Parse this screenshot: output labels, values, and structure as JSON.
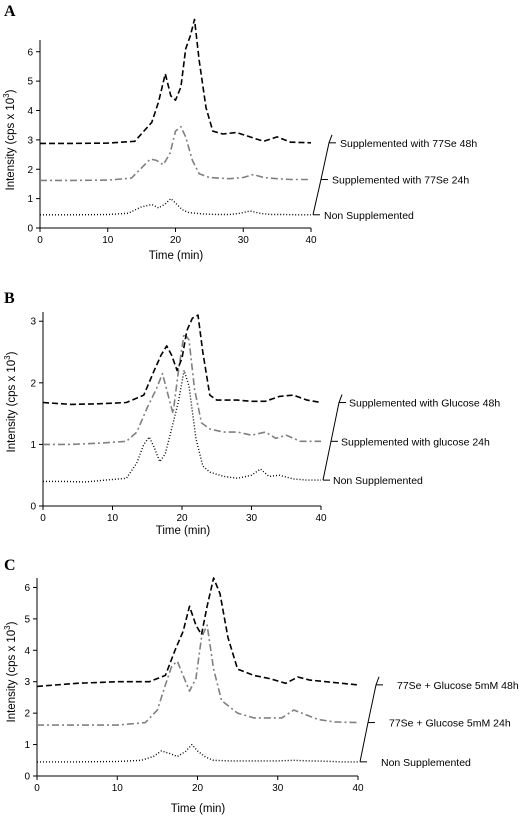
{
  "chart_data": [
    {
      "type": "line",
      "panel": "A",
      "xlabel": "Time (min)",
      "ylabel": "Intensity (cps x 10",
      "ylabel_sup": "3",
      "ylabel_close": ")",
      "xlim": [
        0,
        40
      ],
      "ylim": [
        0,
        6.4
      ],
      "x_ticks": [
        "0",
        "10",
        "20",
        "30",
        "40"
      ],
      "y_ticks": [
        "0",
        "1",
        "2",
        "3",
        "4",
        "5",
        "6"
      ],
      "grid": false,
      "series": [
        {
          "name": "Non Supplemented",
          "color": "#000000",
          "style": "dotted",
          "x": [
            0,
            5,
            10,
            13,
            15,
            16.5,
            17.5,
            18.5,
            19.3,
            20,
            21,
            22,
            24,
            26,
            28,
            29.5,
            31,
            32.5,
            34,
            36,
            38,
            40
          ],
          "y": [
            0.45,
            0.45,
            0.46,
            0.5,
            0.72,
            0.8,
            0.68,
            0.82,
            1.0,
            0.85,
            0.62,
            0.52,
            0.48,
            0.46,
            0.46,
            0.5,
            0.58,
            0.5,
            0.46,
            0.46,
            0.45,
            0.45
          ]
        },
        {
          "name": "Supplemented with 77Se 24h",
          "color": "#808080",
          "style": "dashdot",
          "x": [
            0,
            5,
            10,
            13.5,
            15,
            16.3,
            17.2,
            18.2,
            19.2,
            20,
            20.8,
            21.5,
            22.5,
            23.5,
            25,
            28,
            30,
            31.5,
            33,
            35,
            37,
            40
          ],
          "y": [
            1.62,
            1.62,
            1.63,
            1.7,
            2.05,
            2.35,
            2.3,
            2.15,
            2.55,
            3.3,
            3.45,
            3.1,
            2.3,
            1.85,
            1.72,
            1.68,
            1.72,
            1.82,
            1.72,
            1.68,
            1.65,
            1.65
          ]
        },
        {
          "name": "Supplemented with 77Se 48h",
          "color": "#000000",
          "style": "dashed",
          "x": [
            0,
            5,
            10,
            14,
            16.5,
            17.5,
            18.5,
            19.3,
            20,
            20.8,
            21.5,
            22.2,
            22.8,
            23.5,
            24.5,
            25.5,
            27,
            29,
            31,
            33,
            35,
            37,
            40
          ],
          "y": [
            2.88,
            2.88,
            2.89,
            2.95,
            3.6,
            4.3,
            5.25,
            4.5,
            4.35,
            4.8,
            6.1,
            6.55,
            7.1,
            5.7,
            4.1,
            3.3,
            3.2,
            3.25,
            3.1,
            2.95,
            3.1,
            2.92,
            2.9
          ]
        }
      ]
    },
    {
      "type": "line",
      "panel": "B",
      "xlabel": "Time (min)",
      "ylabel": "Intensity (cps x 10",
      "ylabel_sup": "3",
      "ylabel_close": ")",
      "xlim": [
        0,
        40
      ],
      "ylim": [
        0,
        3.15
      ],
      "x_ticks": [
        "0",
        "10",
        "20",
        "30",
        "40"
      ],
      "y_ticks": [
        "0",
        "1",
        "2",
        "3"
      ],
      "grid": false,
      "series": [
        {
          "name": "Non Supplemented",
          "color": "#000000",
          "style": "dotted",
          "x": [
            0,
            3,
            6,
            9,
            12,
            13.5,
            14.5,
            15.3,
            16,
            16.8,
            17.6,
            18.5,
            19.5,
            20.3,
            21,
            22,
            23,
            24,
            26,
            28,
            30,
            31.3,
            32.5,
            34,
            36,
            38,
            40
          ],
          "y": [
            0.4,
            0.4,
            0.39,
            0.42,
            0.45,
            0.7,
            1.0,
            1.12,
            0.95,
            0.72,
            0.85,
            1.25,
            1.7,
            2.2,
            1.95,
            1.1,
            0.65,
            0.55,
            0.48,
            0.45,
            0.5,
            0.6,
            0.48,
            0.5,
            0.44,
            0.42,
            0.42
          ]
        },
        {
          "name": "Supplemented with glucose 24h",
          "color": "#808080",
          "style": "dashdot",
          "x": [
            0,
            4,
            8,
            12,
            13.5,
            15,
            16.3,
            17.2,
            18,
            18.7,
            19.5,
            20.3,
            21,
            21.8,
            22.8,
            24,
            26,
            28,
            30,
            32,
            33.5,
            35,
            37,
            40
          ],
          "y": [
            1.0,
            1.0,
            1.02,
            1.05,
            1.2,
            1.6,
            1.9,
            2.15,
            1.8,
            1.5,
            2.2,
            2.8,
            2.7,
            1.9,
            1.35,
            1.25,
            1.2,
            1.2,
            1.15,
            1.2,
            1.1,
            1.15,
            1.05,
            1.05
          ]
        },
        {
          "name": "Supplemented with Glucose 48h",
          "color": "#000000",
          "style": "dashed",
          "x": [
            0,
            4,
            8,
            12,
            14.5,
            16,
            17,
            17.8,
            18.5,
            19.3,
            20,
            20.7,
            21.5,
            22.3,
            23,
            24,
            25,
            26.5,
            28,
            30,
            32,
            34,
            36,
            38,
            40
          ],
          "y": [
            1.68,
            1.65,
            1.66,
            1.68,
            1.8,
            2.2,
            2.45,
            2.6,
            2.45,
            2.2,
            2.4,
            2.85,
            3.05,
            3.1,
            2.5,
            1.8,
            1.72,
            1.72,
            1.72,
            1.7,
            1.7,
            1.78,
            1.8,
            1.72,
            1.68
          ]
        }
      ]
    },
    {
      "type": "line",
      "panel": "C",
      "xlabel": "Time (min)",
      "ylabel": "Intensity (cps x 10",
      "ylabel_sup": "3",
      "ylabel_close": ")",
      "xlim": [
        0,
        40
      ],
      "ylim": [
        0,
        6.3
      ],
      "x_ticks": [
        "0",
        "10",
        "20",
        "30",
        "40"
      ],
      "y_ticks": [
        "0",
        "1",
        "2",
        "3",
        "4",
        "5",
        "6"
      ],
      "grid": false,
      "series": [
        {
          "name": "Non Supplemented",
          "color": "#000000",
          "style": "dotted",
          "x": [
            0,
            5,
            10,
            13,
            14.5,
            15.5,
            16.5,
            17.5,
            18.5,
            19.3,
            20,
            21,
            22,
            24,
            27,
            30,
            32,
            34,
            36,
            38,
            40
          ],
          "y": [
            0.45,
            0.45,
            0.46,
            0.5,
            0.62,
            0.8,
            0.72,
            0.62,
            0.78,
            1.0,
            0.8,
            0.6,
            0.5,
            0.48,
            0.48,
            0.48,
            0.5,
            0.48,
            0.47,
            0.45,
            0.45
          ]
        },
        {
          "name": "77Se + Glucose 5mM 24h",
          "color": "#808080",
          "style": "dashdot",
          "x": [
            0,
            5,
            10,
            13.5,
            15,
            16,
            16.8,
            17.5,
            18.2,
            19,
            19.8,
            20.5,
            21.2,
            22,
            23,
            25,
            27,
            29,
            30.5,
            32,
            33.5,
            35,
            37,
            40
          ],
          "y": [
            1.62,
            1.62,
            1.62,
            1.7,
            2.1,
            2.9,
            3.5,
            3.65,
            3.2,
            2.7,
            3.1,
            4.4,
            4.8,
            3.4,
            2.4,
            2.0,
            1.85,
            1.85,
            1.85,
            2.1,
            1.95,
            1.8,
            1.72,
            1.7
          ]
        },
        {
          "name": "77Se + Glucose 5mM 48h",
          "color": "#000000",
          "style": "dashed",
          "x": [
            0,
            5,
            10,
            14,
            16,
            17.2,
            18.2,
            19,
            19.8,
            20.5,
            21.2,
            22,
            22.8,
            23.8,
            25,
            27,
            29,
            31,
            32.5,
            34,
            36,
            38,
            40
          ],
          "y": [
            2.85,
            2.95,
            3.0,
            3.0,
            3.2,
            4.0,
            4.6,
            5.4,
            4.8,
            4.5,
            5.4,
            6.3,
            5.8,
            4.4,
            3.4,
            3.2,
            3.1,
            2.95,
            3.15,
            3.05,
            3.0,
            2.95,
            2.9
          ]
        }
      ]
    }
  ]
}
